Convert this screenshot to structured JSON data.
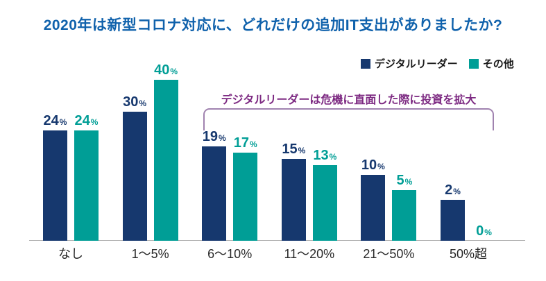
{
  "title": {
    "text": "2020年は新型コロナ対応に、どれだけの追加IT支出がありましたか?",
    "color": "#1062AC"
  },
  "legend": {
    "items": [
      {
        "label": "デジタルリーダー",
        "color": "#16386E"
      },
      {
        "label": "その他",
        "color": "#009E96"
      }
    ]
  },
  "annotation": {
    "text": "デジタルリーダーは危機に直面した際に投資を拡大",
    "text_color": "#7D2A82",
    "bracket_color": "#A082AF"
  },
  "axis": {
    "line_color": "#ABABAB",
    "label_color": "#282828"
  },
  "chart_data": {
    "type": "bar",
    "title": "2020年は新型コロナ対応に、どれだけの追加IT支出がありましたか?",
    "categories": [
      "なし",
      "1〜5%",
      "6〜10%",
      "11〜20%",
      "21〜50%",
      "50%超"
    ],
    "series": [
      {
        "name": "デジタルリーダー",
        "color": "#16386E",
        "values": [
          24,
          30,
          19,
          15,
          10,
          2
        ]
      },
      {
        "name": "その他",
        "color": "#009E96",
        "values": [
          24,
          40,
          17,
          13,
          5,
          0
        ]
      }
    ],
    "value_suffix": "%",
    "ylim": [
      0,
      40
    ],
    "grid": false,
    "legend_position": "top-right",
    "annotation": "デジタルリーダーは危機に直面した際に投資を拡大",
    "annotation_span_categories": [
      "6〜10%",
      "50%超"
    ]
  }
}
